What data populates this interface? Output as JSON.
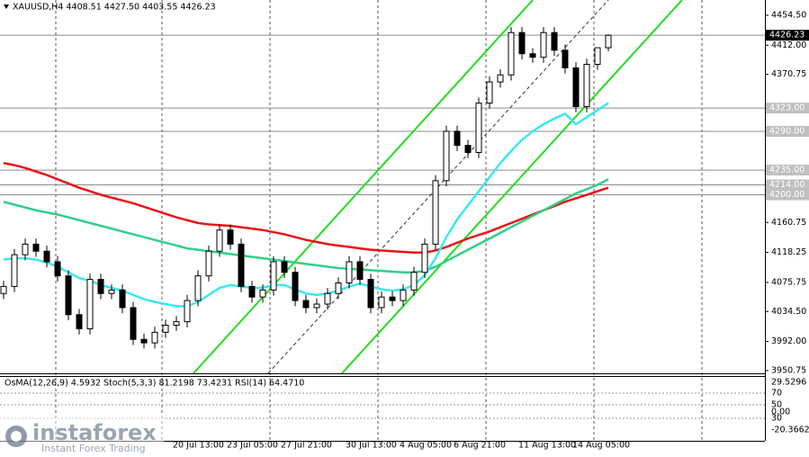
{
  "chart_data": {
    "type": "candlestick",
    "title": "XAUUSD,H4  4408.51 4427.50 4403.55 4426.23",
    "categories": [
      null,
      null,
      null,
      null,
      null,
      null,
      null,
      null,
      null,
      null,
      null,
      null,
      null,
      null,
      null,
      null,
      null,
      null,
      "20 Jul 13:00",
      null,
      null,
      null,
      null,
      "23 Jul 05:00",
      null,
      null,
      null,
      null,
      "27 Jul 21:00",
      null,
      null,
      null,
      null,
      null,
      "30 Jul 13:00",
      null,
      null,
      null,
      null,
      "4 Aug 05:00",
      null,
      null,
      null,
      null,
      "6 Aug 21:00",
      null,
      null,
      null,
      null,
      null,
      "11 Aug 13:00",
      null,
      null,
      null,
      null,
      "14 Aug 05:00",
      null
    ],
    "open": [
      4060,
      4070,
      4115,
      4130,
      4120,
      4105,
      4085,
      4030,
      4010,
      4080,
      4060,
      4065,
      4040,
      3995,
      3990,
      4005,
      4015,
      4020,
      4050,
      4085,
      4120,
      4150,
      4130,
      4070,
      4055,
      4065,
      4105,
      4090,
      4050,
      4040,
      4045,
      4060,
      4075,
      4105,
      4080,
      4040,
      4055,
      4050,
      4065,
      4090,
      4130,
      4220,
      4290,
      4270,
      4260,
      4330,
      4360,
      4370,
      4430,
      4400,
      4395,
      4430,
      4405,
      4380,
      4325,
      4385,
      4408.51
    ],
    "high": [
      4078,
      4123,
      4138,
      4138,
      4128,
      4113,
      4093,
      4038,
      4088,
      4088,
      4073,
      4073,
      4048,
      4003,
      4013,
      4023,
      4028,
      4058,
      4093,
      4128,
      4158,
      4158,
      4138,
      4078,
      4073,
      4113,
      4113,
      4098,
      4058,
      4053,
      4068,
      4083,
      4113,
      4113,
      4088,
      4063,
      4063,
      4073,
      4098,
      4138,
      4228,
      4298,
      4298,
      4278,
      4338,
      4368,
      4378,
      4438,
      4438,
      4408,
      4438,
      4438,
      4413,
      4388,
      4393,
      4408,
      4427.5
    ],
    "low": [
      4052,
      4062,
      4107,
      4112,
      4097,
      4077,
      4022,
      4002,
      4002,
      4052,
      4052,
      4032,
      3987,
      3982,
      3982,
      3997,
      4007,
      4012,
      4042,
      4077,
      4112,
      4122,
      4062,
      4047,
      4047,
      4057,
      4082,
      4042,
      4032,
      4032,
      4037,
      4052,
      4067,
      4072,
      4032,
      4032,
      4042,
      4042,
      4057,
      4082,
      4122,
      4212,
      4262,
      4252,
      4252,
      4322,
      4352,
      4362,
      4392,
      4387,
      4387,
      4397,
      4372,
      4317,
      4317,
      4377,
      4403.55
    ],
    "close": [
      4070,
      4115,
      4130,
      4120,
      4105,
      4085,
      4030,
      4010,
      4080,
      4060,
      4065,
      4040,
      3995,
      3990,
      4005,
      4015,
      4020,
      4050,
      4085,
      4120,
      4150,
      4130,
      4070,
      4055,
      4065,
      4105,
      4090,
      4050,
      4040,
      4045,
      4060,
      4075,
      4105,
      4080,
      4040,
      4055,
      4050,
      4065,
      4090,
      4130,
      4220,
      4290,
      4270,
      4260,
      4330,
      4360,
      4370,
      4430,
      4400,
      4395,
      4430,
      4405,
      4380,
      4325,
      4385,
      4408.51,
      4426.23
    ],
    "up_color": "#ffffff",
    "down_color": "#000000",
    "series": [
      {
        "color": "#e8141a",
        "values": [
          4245,
          4242,
          4238,
          4233,
          4228,
          4222,
          4216,
          4210,
          4205,
          4200,
          4196,
          4192,
          4188,
          4183,
          4178,
          4173,
          4168,
          4164,
          4160,
          4158,
          4157,
          4156,
          4154,
          4152,
          4150,
          4147,
          4144,
          4140,
          4136,
          4133,
          4130,
          4128,
          4126,
          4124,
          4122,
          4121,
          4120,
          4119,
          4118,
          4118,
          4121,
          4126,
          4132,
          4138,
          4143,
          4148,
          4154,
          4160,
          4166,
          4172,
          4178,
          4184,
          4190,
          4195,
          4200,
          4205,
          4210
        ]
      },
      {
        "color": "#2fd08a",
        "values": [
          4190,
          4186,
          4182,
          4178,
          4175,
          4172,
          4168,
          4164,
          4160,
          4156,
          4152,
          4148,
          4144,
          4140,
          4136,
          4132,
          4128,
          4124,
          4122,
          4120,
          4118,
          4116,
          4114,
          4112,
          4110,
          4108,
          4106,
          4104,
          4102,
          4100,
          4098,
          4096,
          4095,
          4094,
          4093,
          4092,
          4091,
          4090,
          4090,
          4092,
          4098,
          4106,
          4114,
          4122,
          4130,
          4138,
          4146,
          4154,
          4162,
          4170,
          4178,
          4186,
          4194,
          4202,
          4208,
          4214,
          4222
        ]
      },
      {
        "color": "#3ae8f0",
        "values": [
          4108,
          4110,
          4110,
          4108,
          4104,
          4098,
          4090,
          4082,
          4078,
          4072,
          4068,
          4064,
          4058,
          4052,
          4048,
          4045,
          4042,
          4042,
          4048,
          4058,
          4068,
          4072,
          4070,
          4068,
          4068,
          4072,
          4072,
          4066,
          4060,
          4058,
          4060,
          4064,
          4070,
          4074,
          4070,
          4066,
          4064,
          4066,
          4072,
          4086,
          4110,
          4140,
          4165,
          4185,
          4205,
          4225,
          4245,
          4262,
          4278,
          4290,
          4300,
          4308,
          4315,
          4300,
          4310,
          4320,
          4330
        ]
      }
    ],
    "ylim": [
      3946.8,
      4476.2
    ],
    "yticks": [
      {
        "value": 4454.5,
        "label": "4454.50"
      },
      {
        "value": 4412,
        "label": "4412.00"
      },
      4370.75,
      4160.75,
      4118.25,
      4075.75,
      {
        "value": 4034.5,
        "label": "4034.50"
      },
      {
        "value": 3992,
        "label": "3992.00"
      },
      3950.75
    ],
    "levels": [
      {
        "value": 4323,
        "label": "4323.00"
      },
      {
        "value": 4290,
        "label": "4290.00"
      },
      {
        "value": 4235,
        "label": "4235.00"
      },
      {
        "value": 4214,
        "label": "4214.00"
      },
      {
        "value": 4200,
        "label": "4200.00"
      }
    ],
    "current_price": 4426.23,
    "indicator_panel": {
      "title": "OsMA(12,26,9) 4.5932  Stoch(5,3,3) 81.2198 73.4231  RSI(14) 64.4710",
      "scale": [
        "29.5296",
        "70",
        "50",
        "0.00",
        "30",
        "-20.3662"
      ]
    },
    "watermark": {
      "brand": "instaforex",
      "tagline": "Instant Forex Trading"
    }
  }
}
